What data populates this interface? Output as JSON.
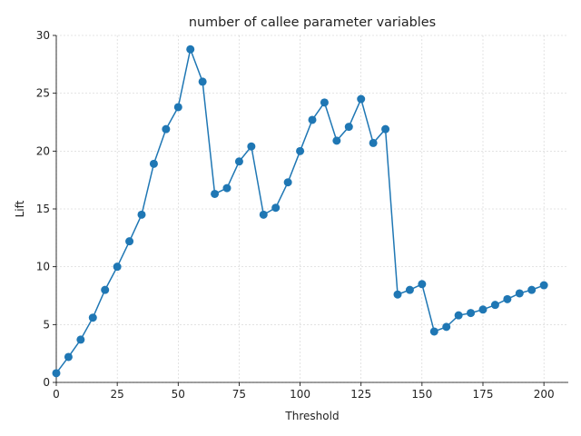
{
  "chart_data": {
    "type": "line",
    "title": "number of callee parameter variables",
    "xlabel": "Threshold",
    "ylabel": "Lift",
    "xlim": [
      0,
      210
    ],
    "ylim": [
      0,
      30
    ],
    "xticks": [
      0,
      25,
      50,
      75,
      100,
      125,
      150,
      175,
      200
    ],
    "yticks": [
      0,
      5,
      10,
      15,
      20,
      25,
      30
    ],
    "grid": true,
    "color": "#1f77b4",
    "markers": "circle",
    "series": [
      {
        "x": [
          0,
          5,
          10,
          15,
          20,
          25,
          30,
          35,
          40,
          45,
          50,
          55,
          60,
          65,
          70,
          75,
          80,
          85,
          90,
          95,
          100,
          105,
          110,
          115,
          120,
          125,
          130,
          135,
          140,
          145,
          150,
          155,
          160,
          165,
          170,
          175,
          180,
          185,
          190,
          195,
          200
        ],
        "y": [
          0.8,
          2.2,
          3.7,
          5.6,
          8.0,
          10.0,
          12.2,
          14.5,
          18.9,
          21.9,
          23.8,
          28.8,
          26.0,
          16.3,
          16.8,
          19.1,
          20.4,
          14.5,
          15.1,
          17.3,
          20.0,
          22.7,
          24.2,
          20.9,
          22.1,
          24.5,
          20.7,
          21.9,
          7.6,
          8.0,
          8.5,
          4.4,
          4.8,
          5.8,
          6.0,
          6.3,
          6.7,
          7.2,
          7.7,
          8.0,
          8.4
        ]
      }
    ]
  }
}
